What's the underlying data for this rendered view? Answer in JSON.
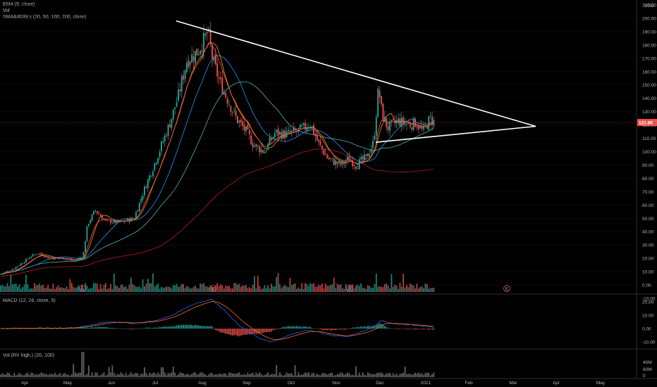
{
  "legend": {
    "ema": "EMA (9, close)",
    "vol": "Vol",
    "sma": "SMA&#039;s (20, 50, 100, 200, close)",
    "macd": "MACD (12, 26, close, 9)",
    "volbot": "Vol (RV high.) (20, 100)"
  },
  "currency": "USD",
  "last_price": "121.86",
  "colors": {
    "up": "#26a69a",
    "down": "#ef5350",
    "ema9": "#ff5252",
    "sma20": "#ff9800",
    "sma50": "#2196f3",
    "sma100": "#4db6ac",
    "sma200": "#b71c1c",
    "macd": "#2962ff",
    "signal": "#ff6d00",
    "trendline": "#ffffff",
    "background": "#000000"
  },
  "chart_data": [
    {
      "type": "candlestick",
      "log_scale": true,
      "ylim": [
        -10,
        210
      ],
      "y_ticks": [
        "210.00",
        "200.00",
        "190.00",
        "180.00",
        "170.00",
        "160.00",
        "150.00",
        "140.00",
        "130.00",
        "120.00",
        "110.00",
        "100.00",
        "90.00",
        "80.00",
        "70.00",
        "60.00",
        "50.00",
        "40.00",
        "30.00",
        "20.00",
        "10.00",
        "0.00",
        "-10.00"
      ],
      "x_labels": [
        "Apr",
        "May",
        "Jun",
        "Jul",
        "Aug",
        "Sep",
        "Oct",
        "Nov",
        "Dec",
        "2021",
        "Feb",
        "Mar",
        "Apr",
        "May"
      ],
      "events": [
        "E",
        "E",
        "E",
        "E"
      ],
      "price_path": [
        [
          0,
          8
        ],
        [
          15,
          11
        ],
        [
          30,
          16
        ],
        [
          45,
          22
        ],
        [
          55,
          24
        ],
        [
          70,
          20
        ],
        [
          90,
          20
        ],
        [
          105,
          18
        ],
        [
          118,
          22
        ],
        [
          124,
          45
        ],
        [
          135,
          56
        ],
        [
          150,
          48
        ],
        [
          170,
          47
        ],
        [
          190,
          50
        ],
        [
          205,
          72
        ],
        [
          220,
          92
        ],
        [
          240,
          120
        ],
        [
          252,
          140
        ],
        [
          265,
          168
        ],
        [
          280,
          175
        ],
        [
          288,
          182
        ],
        [
          295,
          190
        ],
        [
          302,
          168
        ],
        [
          312,
          152
        ],
        [
          322,
          140
        ],
        [
          335,
          125
        ],
        [
          348,
          116
        ],
        [
          360,
          105
        ],
        [
          375,
          100
        ],
        [
          390,
          114
        ],
        [
          405,
          113
        ],
        [
          420,
          115
        ],
        [
          432,
          118
        ],
        [
          440,
          121
        ],
        [
          452,
          106
        ],
        [
          465,
          95
        ],
        [
          475,
          92
        ],
        [
          485,
          90
        ],
        [
          495,
          95
        ],
        [
          505,
          90
        ],
        [
          520,
          96
        ],
        [
          530,
          107
        ],
        [
          537,
          148
        ],
        [
          542,
          128
        ],
        [
          550,
          118
        ],
        [
          565,
          123
        ],
        [
          580,
          120
        ],
        [
          590,
          122
        ],
        [
          600,
          115
        ],
        [
          610,
          125
        ],
        [
          617,
          121.86
        ]
      ],
      "series": [
        {
          "name": "EMA (9, close)"
        },
        {
          "name": "SMA 20"
        },
        {
          "name": "SMA 50"
        },
        {
          "name": "SMA 100"
        },
        {
          "name": "SMA 200"
        }
      ],
      "trendlines": [
        {
          "from": [
            "Jul",
            198
          ],
          "to": [
            "Mar",
            119
          ]
        },
        {
          "from": [
            "Dec",
            107
          ],
          "to": [
            "Mar",
            119
          ]
        }
      ]
    },
    {
      "type": "volume_histogram",
      "name": "Vol"
    },
    {
      "type": "macd",
      "name": "MACD (12, 26, close, 9)",
      "ylim": [
        -15,
        25
      ],
      "y_ticks": [
        "20.00",
        "10.00",
        "0.00",
        "-10.00"
      ],
      "path": [
        [
          0,
          0
        ],
        [
          100,
          0.5
        ],
        [
          124,
          2
        ],
        [
          150,
          5
        ],
        [
          190,
          4
        ],
        [
          220,
          6
        ],
        [
          245,
          10
        ],
        [
          265,
          16
        ],
        [
          285,
          20
        ],
        [
          300,
          22
        ],
        [
          318,
          14
        ],
        [
          340,
          2
        ],
        [
          370,
          -8
        ],
        [
          385,
          -10
        ],
        [
          405,
          -6
        ],
        [
          420,
          -3
        ],
        [
          440,
          -1
        ],
        [
          470,
          -5
        ],
        [
          490,
          -6
        ],
        [
          510,
          -3
        ],
        [
          530,
          1
        ],
        [
          540,
          6
        ],
        [
          555,
          4
        ],
        [
          580,
          3
        ],
        [
          600,
          2
        ],
        [
          617,
          1
        ]
      ]
    },
    {
      "type": "bar",
      "name": "Vol (RV high.) (20, 100)",
      "y_ticks": [
        "80M",
        "40M",
        "0"
      ]
    }
  ]
}
